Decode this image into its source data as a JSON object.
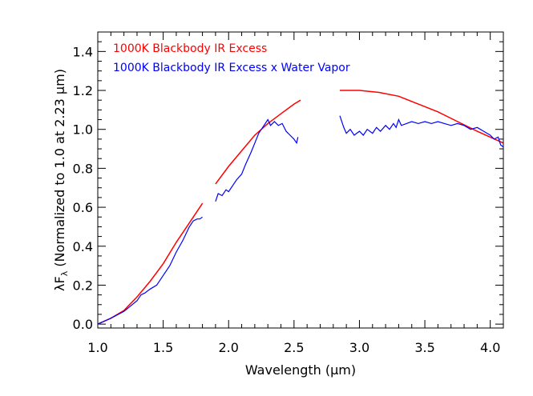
{
  "chart_data": {
    "type": "line",
    "xlabel": "Wavelength (μm)",
    "ylabel_main": "λF",
    "ylabel_sub": "λ",
    "ylabel_rest": " (Normalized to 1.0 at 2.23 μm)",
    "xlim": [
      1.0,
      4.1
    ],
    "ylim": [
      -0.02,
      1.5
    ],
    "xticks": [
      "1.0",
      "1.5",
      "2.0",
      "2.5",
      "3.0",
      "3.5",
      "4.0"
    ],
    "yticks": [
      "0.0",
      "0.2",
      "0.4",
      "0.6",
      "0.8",
      "1.0",
      "1.2",
      "1.4"
    ],
    "grid": false,
    "legend_position": "top-left",
    "series": [
      {
        "name": "1000K Blackbody IR Excess",
        "color": "#ff0000",
        "segments": [
          [
            [
              1.0,
              0.0
            ],
            [
              1.1,
              0.03
            ],
            [
              1.2,
              0.07
            ],
            [
              1.3,
              0.14
            ],
            [
              1.4,
              0.22
            ],
            [
              1.5,
              0.31
            ],
            [
              1.6,
              0.42
            ],
            [
              1.7,
              0.52
            ],
            [
              1.8,
              0.62
            ]
          ],
          [
            [
              1.9,
              0.72
            ],
            [
              2.0,
              0.81
            ],
            [
              2.1,
              0.89
            ],
            [
              2.2,
              0.97
            ],
            [
              2.3,
              1.03
            ],
            [
              2.4,
              1.08
            ],
            [
              2.5,
              1.13
            ],
            [
              2.55,
              1.15
            ]
          ],
          [
            [
              2.85,
              1.2
            ],
            [
              3.0,
              1.2
            ],
            [
              3.15,
              1.19
            ],
            [
              3.3,
              1.17
            ],
            [
              3.45,
              1.13
            ],
            [
              3.6,
              1.09
            ],
            [
              3.75,
              1.04
            ],
            [
              3.9,
              0.99
            ],
            [
              4.0,
              0.96
            ],
            [
              4.1,
              0.93
            ]
          ]
        ]
      },
      {
        "name": "1000K Blackbody IR Excess x Water Vapor",
        "color": "#0000ff",
        "segments": [
          [
            [
              1.0,
              0.0
            ],
            [
              1.1,
              0.03
            ],
            [
              1.2,
              0.065
            ],
            [
              1.3,
              0.12
            ],
            [
              1.33,
              0.15
            ],
            [
              1.36,
              0.16
            ],
            [
              1.4,
              0.18
            ],
            [
              1.45,
              0.2
            ],
            [
              1.5,
              0.25
            ],
            [
              1.55,
              0.3
            ],
            [
              1.6,
              0.37
            ],
            [
              1.65,
              0.43
            ],
            [
              1.7,
              0.5
            ],
            [
              1.73,
              0.53
            ],
            [
              1.76,
              0.54
            ],
            [
              1.78,
              0.54
            ],
            [
              1.8,
              0.55
            ]
          ],
          [
            [
              1.9,
              0.63
            ],
            [
              1.92,
              0.67
            ],
            [
              1.95,
              0.66
            ],
            [
              1.98,
              0.69
            ],
            [
              2.0,
              0.68
            ],
            [
              2.03,
              0.71
            ],
            [
              2.06,
              0.74
            ],
            [
              2.1,
              0.77
            ],
            [
              2.13,
              0.82
            ],
            [
              2.17,
              0.88
            ],
            [
              2.2,
              0.93
            ],
            [
              2.23,
              0.98
            ],
            [
              2.26,
              1.01
            ],
            [
              2.3,
              1.05
            ],
            [
              2.32,
              1.02
            ],
            [
              2.35,
              1.04
            ],
            [
              2.38,
              1.02
            ],
            [
              2.41,
              1.03
            ],
            [
              2.44,
              0.99
            ],
            [
              2.47,
              0.97
            ],
            [
              2.5,
              0.95
            ],
            [
              2.52,
              0.93
            ],
            [
              2.53,
              0.96
            ]
          ],
          [
            [
              2.85,
              1.07
            ],
            [
              2.88,
              1.01
            ],
            [
              2.9,
              0.98
            ],
            [
              2.93,
              1.0
            ],
            [
              2.96,
              0.97
            ],
            [
              3.0,
              0.99
            ],
            [
              3.03,
              0.97
            ],
            [
              3.06,
              1.0
            ],
            [
              3.1,
              0.98
            ],
            [
              3.13,
              1.01
            ],
            [
              3.16,
              0.99
            ],
            [
              3.2,
              1.02
            ],
            [
              3.23,
              1.0
            ],
            [
              3.26,
              1.03
            ],
            [
              3.28,
              1.01
            ],
            [
              3.3,
              1.05
            ],
            [
              3.32,
              1.02
            ],
            [
              3.36,
              1.03
            ],
            [
              3.4,
              1.04
            ],
            [
              3.45,
              1.03
            ],
            [
              3.5,
              1.04
            ],
            [
              3.55,
              1.03
            ],
            [
              3.6,
              1.04
            ],
            [
              3.65,
              1.03
            ],
            [
              3.7,
              1.02
            ],
            [
              3.75,
              1.03
            ],
            [
              3.8,
              1.02
            ],
            [
              3.85,
              1.0
            ],
            [
              3.9,
              1.01
            ],
            [
              3.95,
              0.99
            ],
            [
              4.0,
              0.97
            ],
            [
              4.03,
              0.95
            ],
            [
              4.06,
              0.96
            ],
            [
              4.08,
              0.92
            ],
            [
              4.1,
              0.91
            ]
          ]
        ]
      }
    ]
  }
}
